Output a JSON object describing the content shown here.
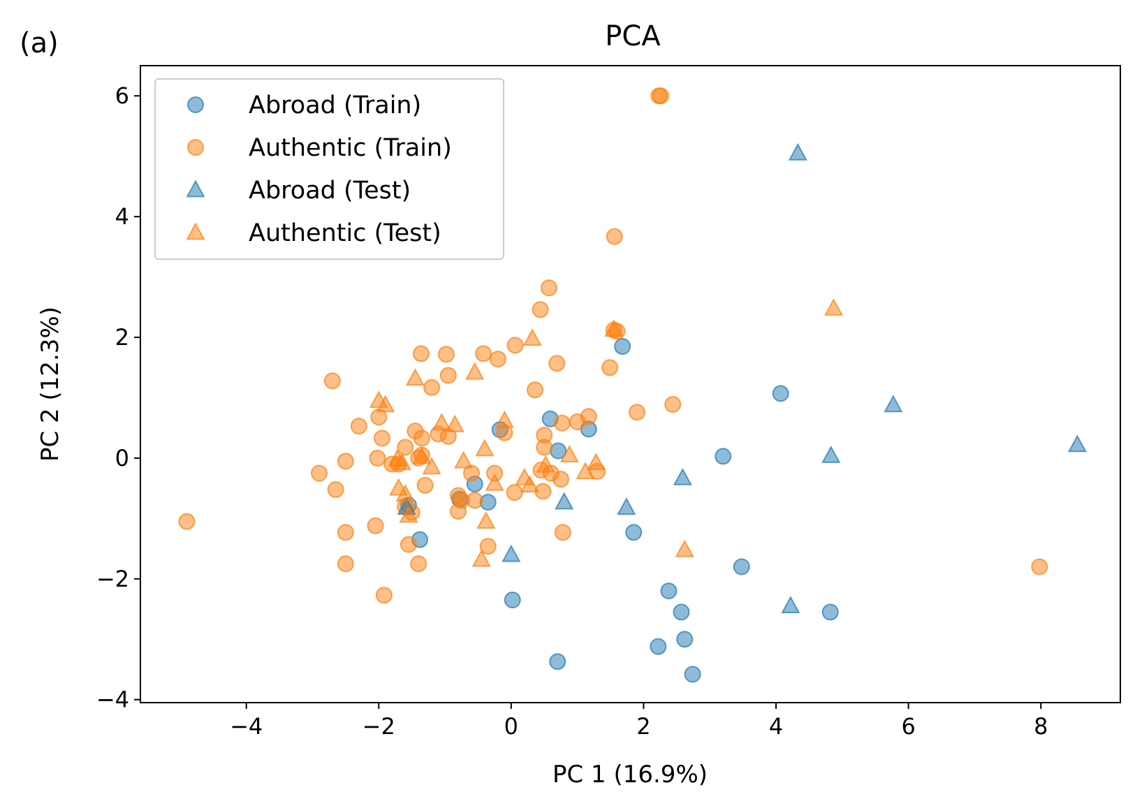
{
  "panel_label": "(a)",
  "chart_data": {
    "type": "scatter",
    "title": "PCA",
    "xlabel": "PC 1 (16.9%)",
    "ylabel": "PC 2 (12.3%)",
    "xlim": [
      -5.6,
      9.2
    ],
    "ylim": [
      -4.05,
      6.5
    ],
    "xticks": [
      -4,
      -2,
      0,
      2,
      4,
      6,
      8
    ],
    "yticks": [
      -4,
      -2,
      0,
      2,
      4,
      6
    ],
    "xtick_labels": [
      "−4",
      "−2",
      "0",
      "2",
      "4",
      "6",
      "8"
    ],
    "ytick_labels": [
      "−4",
      "−2",
      "0",
      "2",
      "4",
      "6"
    ],
    "grid": false,
    "legend_position": "top-left",
    "series": [
      {
        "name": "Abroad (Train)",
        "marker": "circle",
        "color": "#1f77b4",
        "points": [
          [
            1.68,
            1.85
          ],
          [
            4.07,
            1.07
          ],
          [
            3.2,
            0.03
          ],
          [
            0.59,
            0.65
          ],
          [
            -0.17,
            0.47
          ],
          [
            1.17,
            0.48
          ],
          [
            0.71,
            0.12
          ],
          [
            -0.55,
            -0.43
          ],
          [
            -0.35,
            -0.73
          ],
          [
            -0.78,
            -0.68
          ],
          [
            -1.55,
            -0.78
          ],
          [
            -1.38,
            -1.35
          ],
          [
            1.85,
            -1.23
          ],
          [
            3.48,
            -1.8
          ],
          [
            2.38,
            -2.2
          ],
          [
            2.57,
            -2.55
          ],
          [
            4.82,
            -2.55
          ],
          [
            0.02,
            -2.35
          ],
          [
            2.22,
            -3.12
          ],
          [
            2.62,
            -3.0
          ],
          [
            0.7,
            -3.37
          ],
          [
            2.74,
            -3.58
          ]
        ]
      },
      {
        "name": "Authentic (Train)",
        "marker": "circle",
        "color": "#ff7f0e",
        "points": [
          [
            2.23,
            6.0
          ],
          [
            2.26,
            6.0
          ],
          [
            1.56,
            3.67
          ],
          [
            0.57,
            2.82
          ],
          [
            0.44,
            2.46
          ],
          [
            1.55,
            2.12
          ],
          [
            1.6,
            2.1
          ],
          [
            -1.36,
            1.73
          ],
          [
            -0.98,
            1.72
          ],
          [
            -0.42,
            1.73
          ],
          [
            -0.2,
            1.64
          ],
          [
            0.06,
            1.87
          ],
          [
            0.69,
            1.57
          ],
          [
            1.49,
            1.5
          ],
          [
            -2.7,
            1.28
          ],
          [
            -0.95,
            1.37
          ],
          [
            -1.2,
            1.17
          ],
          [
            0.36,
            1.13
          ],
          [
            2.44,
            0.89
          ],
          [
            1.9,
            0.76
          ],
          [
            -2.0,
            0.68
          ],
          [
            1.17,
            0.69
          ],
          [
            1.0,
            0.6
          ],
          [
            0.77,
            0.58
          ],
          [
            -2.3,
            0.53
          ],
          [
            -1.45,
            0.45
          ],
          [
            -1.1,
            0.4
          ],
          [
            -0.95,
            0.36
          ],
          [
            -0.1,
            0.42
          ],
          [
            0.5,
            0.38
          ],
          [
            -1.95,
            0.33
          ],
          [
            -1.35,
            0.33
          ],
          [
            0.5,
            0.18
          ],
          [
            -1.6,
            0.18
          ],
          [
            -2.02,
            0.0
          ],
          [
            -1.4,
            0.0
          ],
          [
            -1.35,
            0.05
          ],
          [
            -2.5,
            -0.05
          ],
          [
            -1.7,
            -0.1
          ],
          [
            -1.8,
            -0.1
          ],
          [
            -0.6,
            -0.25
          ],
          [
            -0.25,
            -0.25
          ],
          [
            1.3,
            -0.22
          ],
          [
            0.6,
            -0.25
          ],
          [
            -2.9,
            -0.25
          ],
          [
            0.45,
            -0.2
          ],
          [
            0.75,
            -0.35
          ],
          [
            -1.3,
            -0.45
          ],
          [
            -2.65,
            -0.52
          ],
          [
            0.05,
            -0.57
          ],
          [
            0.48,
            -0.55
          ],
          [
            -0.8,
            -0.62
          ],
          [
            -0.55,
            -0.7
          ],
          [
            -0.75,
            -0.7
          ],
          [
            -1.5,
            -0.9
          ],
          [
            -0.8,
            -0.88
          ],
          [
            -1.6,
            -0.8
          ],
          [
            -4.9,
            -1.05
          ],
          [
            -2.05,
            -1.12
          ],
          [
            -2.5,
            -1.23
          ],
          [
            0.78,
            -1.23
          ],
          [
            -1.55,
            -1.43
          ],
          [
            -0.35,
            -1.46
          ],
          [
            -2.5,
            -1.75
          ],
          [
            -1.4,
            -1.75
          ],
          [
            7.98,
            -1.8
          ],
          [
            -1.92,
            -2.27
          ]
        ]
      },
      {
        "name": "Abroad (Test)",
        "marker": "triangle",
        "color": "#1f77b4",
        "points": [
          [
            4.33,
            5.05
          ],
          [
            5.77,
            0.88
          ],
          [
            8.55,
            0.22
          ],
          [
            4.83,
            0.04
          ],
          [
            2.59,
            -0.33
          ],
          [
            0.8,
            -0.73
          ],
          [
            1.74,
            -0.82
          ],
          [
            -1.58,
            -0.82
          ],
          [
            0.0,
            -1.6
          ],
          [
            4.22,
            -2.45
          ]
        ]
      },
      {
        "name": "Authentic (Test)",
        "marker": "triangle",
        "color": "#ff7f0e",
        "points": [
          [
            4.87,
            2.48
          ],
          [
            1.55,
            2.13
          ],
          [
            0.32,
            1.98
          ],
          [
            -1.45,
            1.32
          ],
          [
            -0.55,
            1.42
          ],
          [
            -2.0,
            0.95
          ],
          [
            -1.9,
            0.88
          ],
          [
            -1.05,
            0.58
          ],
          [
            -0.85,
            0.55
          ],
          [
            -0.1,
            0.62
          ],
          [
            -0.4,
            0.15
          ],
          [
            -1.35,
            0.02
          ],
          [
            -1.65,
            -0.08
          ],
          [
            -1.72,
            -0.02
          ],
          [
            -0.72,
            -0.05
          ],
          [
            0.88,
            0.05
          ],
          [
            1.28,
            -0.08
          ],
          [
            -1.2,
            -0.15
          ],
          [
            0.52,
            -0.12
          ],
          [
            1.12,
            -0.23
          ],
          [
            0.2,
            -0.33
          ],
          [
            -0.25,
            -0.42
          ],
          [
            0.28,
            -0.45
          ],
          [
            -1.7,
            -0.5
          ],
          [
            -1.6,
            -0.6
          ],
          [
            -1.55,
            -0.95
          ],
          [
            -0.38,
            -1.05
          ],
          [
            2.62,
            -1.52
          ],
          [
            -0.45,
            -1.68
          ]
        ]
      }
    ]
  }
}
